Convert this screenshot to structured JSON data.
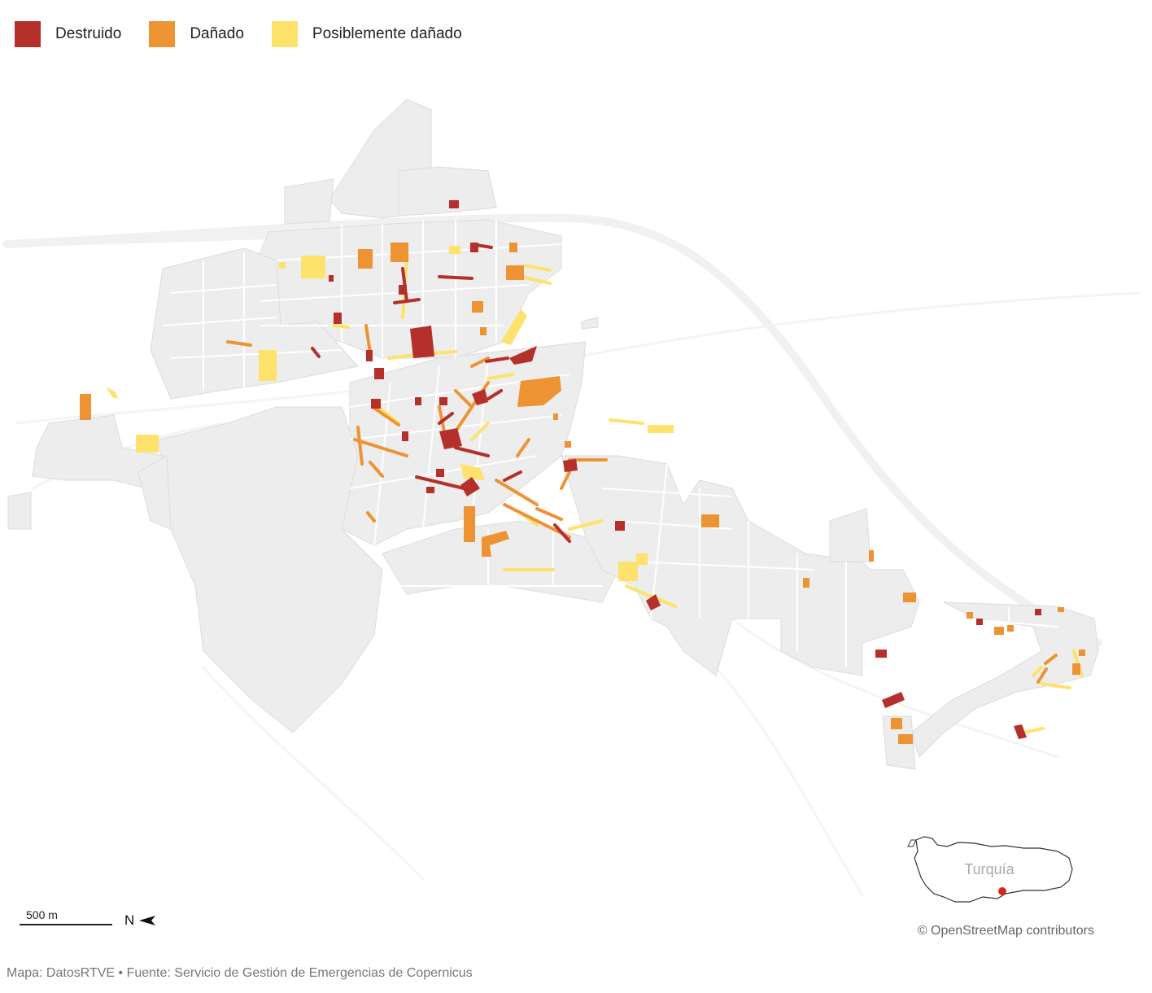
{
  "legend": {
    "items": [
      {
        "label": "Destruido",
        "color": "#b5302a"
      },
      {
        "label": "Dañado",
        "color": "#ee9333"
      },
      {
        "label": "Posiblemente dañado",
        "color": "#fde26b"
      }
    ]
  },
  "colors": {
    "background": "#ffffff",
    "block": "#efefef",
    "block_stroke": "#d9d9d9",
    "road": "#f3f3f3",
    "destroyed": "#b5302a",
    "damaged": "#ee9333",
    "possibly": "#fde26b"
  },
  "scale": {
    "label": "500 m"
  },
  "north": {
    "label": "N",
    "icon": "north-arrow-icon"
  },
  "inset": {
    "label": "Turquía",
    "marker_color": "#d6281f"
  },
  "attribution": "© OpenStreetMap contributors",
  "source": "Mapa: DatosRTVE • Fuente: Servicio de Gestión de Emergencias de Copernicus"
}
